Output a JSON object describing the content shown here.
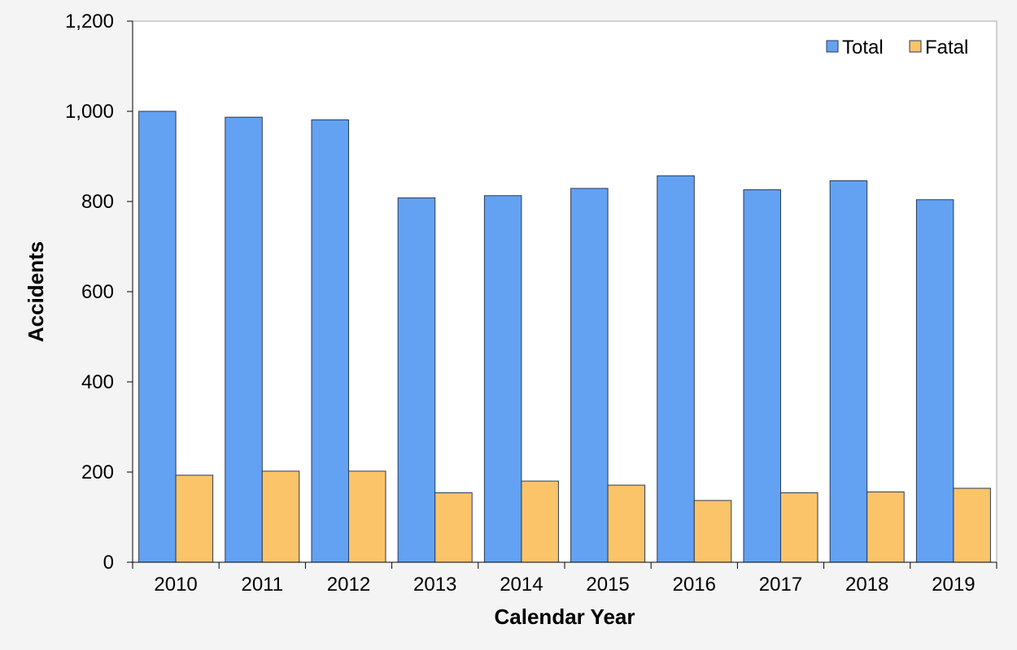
{
  "chart_data": {
    "type": "bar",
    "title": "",
    "xlabel": "Calendar Year",
    "ylabel": "Accidents",
    "categories": [
      "2010",
      "2011",
      "2012",
      "2013",
      "2014",
      "2015",
      "2016",
      "2017",
      "2018",
      "2019"
    ],
    "series": [
      {
        "name": "Total",
        "color": "#63a2f2",
        "values": [
          1000,
          987,
          981,
          808,
          813,
          829,
          857,
          826,
          846,
          804
        ]
      },
      {
        "name": "Fatal",
        "color": "#fbc469",
        "values": [
          193,
          202,
          202,
          154,
          180,
          171,
          137,
          154,
          156,
          164
        ]
      }
    ],
    "ylim": [
      0,
      1200
    ],
    "yticks": [
      0,
      200,
      400,
      600,
      800,
      1000,
      1200
    ],
    "ytick_labels": [
      "0",
      "200",
      "400",
      "600",
      "800",
      "1,000",
      "1,200"
    ],
    "grid": false,
    "legend_position": "top-right"
  }
}
